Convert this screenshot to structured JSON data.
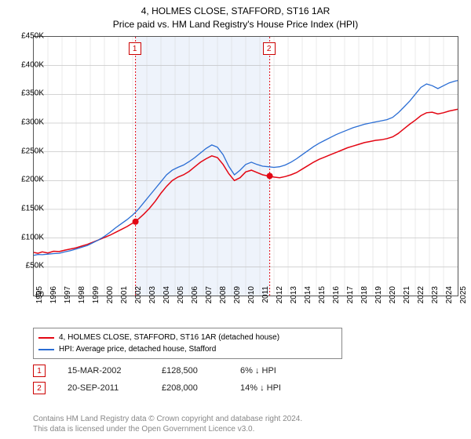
{
  "title": "4, HOLMES CLOSE, STAFFORD, ST16 1AR",
  "subtitle": "Price paid vs. HM Land Registry's House Price Index (HPI)",
  "chart": {
    "type": "line",
    "background_color": "#ffffff",
    "grid_color": "#555555",
    "shade_color": "#eef3fb",
    "xlim": [
      1995,
      2025
    ],
    "ylim": [
      0,
      450000
    ],
    "ytick_step": 50000,
    "ytick_labels": [
      "£0",
      "£50K",
      "£100K",
      "£150K",
      "£200K",
      "£250K",
      "£300K",
      "£350K",
      "£400K",
      "£450K"
    ],
    "xtick_step": 1,
    "xtick_labels": [
      "1995",
      "1996",
      "1997",
      "1998",
      "1999",
      "2000",
      "2001",
      "2002",
      "2003",
      "2004",
      "2005",
      "2006",
      "2007",
      "2008",
      "2009",
      "2010",
      "2011",
      "2012",
      "2013",
      "2014",
      "2015",
      "2016",
      "2017",
      "2018",
      "2019",
      "2020",
      "2021",
      "2022",
      "2023",
      "2024",
      "2025"
    ],
    "shade_x": [
      2002.2,
      2011.7
    ],
    "series": [
      {
        "name": "property",
        "color": "#e30613",
        "line_width": 1.5,
        "data": [
          [
            1995.0,
            75000
          ],
          [
            1995.3,
            73500
          ],
          [
            1995.6,
            76000
          ],
          [
            1996.0,
            74000
          ],
          [
            1996.4,
            77000
          ],
          [
            1996.8,
            76500
          ],
          [
            1997.2,
            79000
          ],
          [
            1997.6,
            81000
          ],
          [
            1998.0,
            83000
          ],
          [
            1998.4,
            86000
          ],
          [
            1998.8,
            89000
          ],
          [
            1999.2,
            93000
          ],
          [
            1999.6,
            97000
          ],
          [
            2000.0,
            101000
          ],
          [
            2000.4,
            105000
          ],
          [
            2000.8,
            110000
          ],
          [
            2001.2,
            115000
          ],
          [
            2001.6,
            120000
          ],
          [
            2002.0,
            126000
          ],
          [
            2002.4,
            133000
          ],
          [
            2002.8,
            142000
          ],
          [
            2003.2,
            152000
          ],
          [
            2003.6,
            164000
          ],
          [
            2004.0,
            178000
          ],
          [
            2004.4,
            190000
          ],
          [
            2004.8,
            200000
          ],
          [
            2005.2,
            206000
          ],
          [
            2005.6,
            210000
          ],
          [
            2006.0,
            216000
          ],
          [
            2006.4,
            224000
          ],
          [
            2006.8,
            232000
          ],
          [
            2007.2,
            238000
          ],
          [
            2007.6,
            243000
          ],
          [
            2008.0,
            240000
          ],
          [
            2008.4,
            228000
          ],
          [
            2008.8,
            212000
          ],
          [
            2009.2,
            200000
          ],
          [
            2009.6,
            205000
          ],
          [
            2010.0,
            215000
          ],
          [
            2010.4,
            218000
          ],
          [
            2010.8,
            214000
          ],
          [
            2011.2,
            210000
          ],
          [
            2011.6,
            208000
          ],
          [
            2012.0,
            206000
          ],
          [
            2012.4,
            205000
          ],
          [
            2012.8,
            207000
          ],
          [
            2013.2,
            210000
          ],
          [
            2013.6,
            214000
          ],
          [
            2014.0,
            220000
          ],
          [
            2014.4,
            226000
          ],
          [
            2014.8,
            232000
          ],
          [
            2015.2,
            237000
          ],
          [
            2015.6,
            241000
          ],
          [
            2016.0,
            245000
          ],
          [
            2016.4,
            249000
          ],
          [
            2016.8,
            253000
          ],
          [
            2017.2,
            257000
          ],
          [
            2017.6,
            260000
          ],
          [
            2018.0,
            263000
          ],
          [
            2018.4,
            266000
          ],
          [
            2018.8,
            268000
          ],
          [
            2019.2,
            270000
          ],
          [
            2019.6,
            271000
          ],
          [
            2020.0,
            273000
          ],
          [
            2020.4,
            276000
          ],
          [
            2020.8,
            282000
          ],
          [
            2021.2,
            290000
          ],
          [
            2021.6,
            298000
          ],
          [
            2022.0,
            305000
          ],
          [
            2022.4,
            313000
          ],
          [
            2022.8,
            318000
          ],
          [
            2023.2,
            319000
          ],
          [
            2023.6,
            316000
          ],
          [
            2024.0,
            318000
          ],
          [
            2024.4,
            321000
          ],
          [
            2024.8,
            323000
          ],
          [
            2025.0,
            324000
          ]
        ]
      },
      {
        "name": "hpi",
        "color": "#2a6dd4",
        "line_width": 1.3,
        "data": [
          [
            1995.0,
            70000
          ],
          [
            1995.3,
            71500
          ],
          [
            1995.6,
            71000
          ],
          [
            1996.0,
            72000
          ],
          [
            1996.4,
            73000
          ],
          [
            1996.8,
            73500
          ],
          [
            1997.2,
            76000
          ],
          [
            1997.6,
            78000
          ],
          [
            1998.0,
            81000
          ],
          [
            1998.4,
            84000
          ],
          [
            1998.8,
            87000
          ],
          [
            1999.2,
            92000
          ],
          [
            1999.6,
            97000
          ],
          [
            2000.0,
            103000
          ],
          [
            2000.4,
            110000
          ],
          [
            2000.8,
            118000
          ],
          [
            2001.2,
            125000
          ],
          [
            2001.6,
            132000
          ],
          [
            2002.0,
            140000
          ],
          [
            2002.4,
            150000
          ],
          [
            2002.8,
            162000
          ],
          [
            2003.2,
            174000
          ],
          [
            2003.6,
            186000
          ],
          [
            2004.0,
            198000
          ],
          [
            2004.4,
            210000
          ],
          [
            2004.8,
            218000
          ],
          [
            2005.2,
            223000
          ],
          [
            2005.6,
            227000
          ],
          [
            2006.0,
            233000
          ],
          [
            2006.4,
            240000
          ],
          [
            2006.8,
            248000
          ],
          [
            2007.2,
            256000
          ],
          [
            2007.6,
            262000
          ],
          [
            2008.0,
            258000
          ],
          [
            2008.4,
            245000
          ],
          [
            2008.8,
            225000
          ],
          [
            2009.2,
            210000
          ],
          [
            2009.6,
            218000
          ],
          [
            2010.0,
            228000
          ],
          [
            2010.4,
            232000
          ],
          [
            2010.8,
            228000
          ],
          [
            2011.2,
            225000
          ],
          [
            2011.6,
            224000
          ],
          [
            2012.0,
            223000
          ],
          [
            2012.4,
            224000
          ],
          [
            2012.8,
            227000
          ],
          [
            2013.2,
            232000
          ],
          [
            2013.6,
            238000
          ],
          [
            2014.0,
            245000
          ],
          [
            2014.4,
            252000
          ],
          [
            2014.8,
            259000
          ],
          [
            2015.2,
            265000
          ],
          [
            2015.6,
            270000
          ],
          [
            2016.0,
            275000
          ],
          [
            2016.4,
            280000
          ],
          [
            2016.8,
            284000
          ],
          [
            2017.2,
            288000
          ],
          [
            2017.6,
            292000
          ],
          [
            2018.0,
            295000
          ],
          [
            2018.4,
            298000
          ],
          [
            2018.8,
            300000
          ],
          [
            2019.2,
            302000
          ],
          [
            2019.6,
            304000
          ],
          [
            2020.0,
            306000
          ],
          [
            2020.4,
            310000
          ],
          [
            2020.8,
            318000
          ],
          [
            2021.2,
            328000
          ],
          [
            2021.6,
            338000
          ],
          [
            2022.0,
            350000
          ],
          [
            2022.4,
            362000
          ],
          [
            2022.8,
            368000
          ],
          [
            2023.2,
            365000
          ],
          [
            2023.6,
            360000
          ],
          [
            2024.0,
            365000
          ],
          [
            2024.4,
            370000
          ],
          [
            2024.8,
            373000
          ],
          [
            2025.0,
            374000
          ]
        ]
      }
    ],
    "sale_markers": [
      {
        "label": "1",
        "x": 2002.2,
        "y": 128500,
        "color": "#e30613"
      },
      {
        "label": "2",
        "x": 2011.7,
        "y": 208000,
        "color": "#e30613"
      }
    ],
    "marker_radius": 4
  },
  "legend": {
    "items": [
      {
        "color": "#e30613",
        "label": "4, HOLMES CLOSE, STAFFORD, ST16 1AR (detached house)"
      },
      {
        "color": "#2a6dd4",
        "label": "HPI: Average price, detached house, Stafford"
      }
    ]
  },
  "sales_table": {
    "rows": [
      {
        "marker": "1",
        "date": "15-MAR-2002",
        "price": "£128,500",
        "pct": "6%",
        "direction": "↓",
        "vs": "HPI"
      },
      {
        "marker": "2",
        "date": "20-SEP-2011",
        "price": "£208,000",
        "pct": "14%",
        "direction": "↓",
        "vs": "HPI"
      }
    ]
  },
  "attribution": {
    "line1": "Contains HM Land Registry data © Crown copyright and database right 2024.",
    "line2": "This data is licensed under the Open Government Licence v3.0."
  }
}
